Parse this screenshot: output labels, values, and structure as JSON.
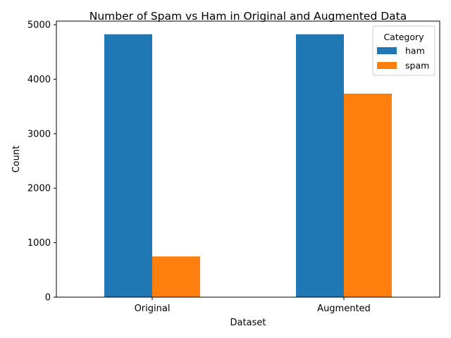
{
  "chart_data": {
    "type": "bar",
    "title": "Number of Spam vs Ham in Original and Augmented Data",
    "xlabel": "Dataset",
    "ylabel": "Count",
    "categories": [
      "Original",
      "Augmented"
    ],
    "series": [
      {
        "name": "ham",
        "color": "#1f77b4",
        "values": [
          4825,
          4825
        ]
      },
      {
        "name": "spam",
        "color": "#ff7f0e",
        "values": [
          747,
          3735
        ]
      }
    ],
    "ylim": [
      0,
      5066
    ],
    "yticks": [
      0,
      1000,
      2000,
      3000,
      4000,
      5000
    ],
    "grid": false,
    "legend": {
      "title": "Category",
      "placement": "top-right"
    }
  }
}
